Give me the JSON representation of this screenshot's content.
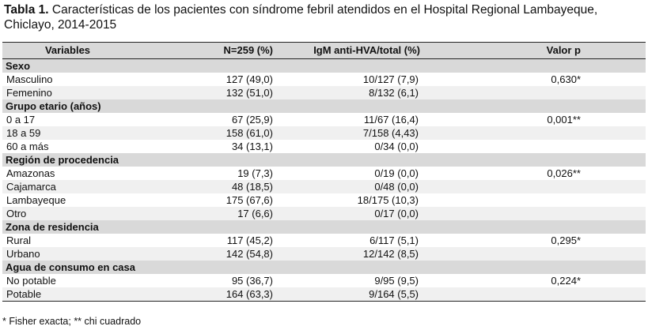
{
  "caption": {
    "label": "Tabla 1.",
    "text": " Características de los pacientes con síndrome febril atendidos en el Hospital Regional Lambayeque, Chiclayo, 2014-2015"
  },
  "headers": [
    "Variables",
    "N=259 (%)",
    "IgM anti-HVA/total (%)",
    "Valor p"
  ],
  "groups": [
    {
      "label": "Sexo",
      "rows": [
        {
          "variable": "Masculino",
          "n": "127 (49,0)",
          "igm": "10/127 (7,9)",
          "p": "0,630*"
        },
        {
          "variable": "Femenino",
          "n": "132 (51,0)",
          "igm": "8/132 (6,1)",
          "p": ""
        }
      ]
    },
    {
      "label": "Grupo etario (años)",
      "rows": [
        {
          "variable": "0 a 17",
          "n": "67 (25,9)",
          "igm": "11/67 (16,4)",
          "p": "0,001**"
        },
        {
          "variable": "18 a 59",
          "n": "158 (61,0)",
          "igm": "7/158 (4,43)",
          "p": ""
        },
        {
          "variable": "60 a más",
          "n": "34 (13,1)",
          "igm": "0/34 (0,0)",
          "p": ""
        }
      ]
    },
    {
      "label": "Región de procedencia",
      "rows": [
        {
          "variable": "Amazonas",
          "n": "19 (7,3)",
          "igm": "0/19 (0,0)",
          "p": "0,026**"
        },
        {
          "variable": "Cajamarca",
          "n": "48 (18,5)",
          "igm": "0/48 (0,0)",
          "p": ""
        },
        {
          "variable": "Lambayeque",
          "n": "175 (67,6)",
          "igm": "18/175 (10,3)",
          "p": ""
        },
        {
          "variable": "Otro",
          "n": "17 (6,6)",
          "igm": "0/17 (0,0)",
          "p": ""
        }
      ]
    },
    {
      "label": "Zona de residencia",
      "rows": [
        {
          "variable": "Rural",
          "n": "117 (45,2)",
          "igm": "6/117 (5,1)",
          "p": "0,295*"
        },
        {
          "variable": "Urbano",
          "n": "142 (54,8)",
          "igm": "12/142 (8,5)",
          "p": ""
        }
      ]
    },
    {
      "label": "Agua de consumo en casa",
      "rows": [
        {
          "variable": "No potable",
          "n": "95 (36,7)",
          "igm": "9/95 (9,5)",
          "p": "0,224*"
        },
        {
          "variable": "Potable",
          "n": "164 (63,3)",
          "igm": "9/164 (5,5)",
          "p": ""
        }
      ]
    }
  ],
  "footnote": "* Fisher exacta; ** chi cuadrado"
}
